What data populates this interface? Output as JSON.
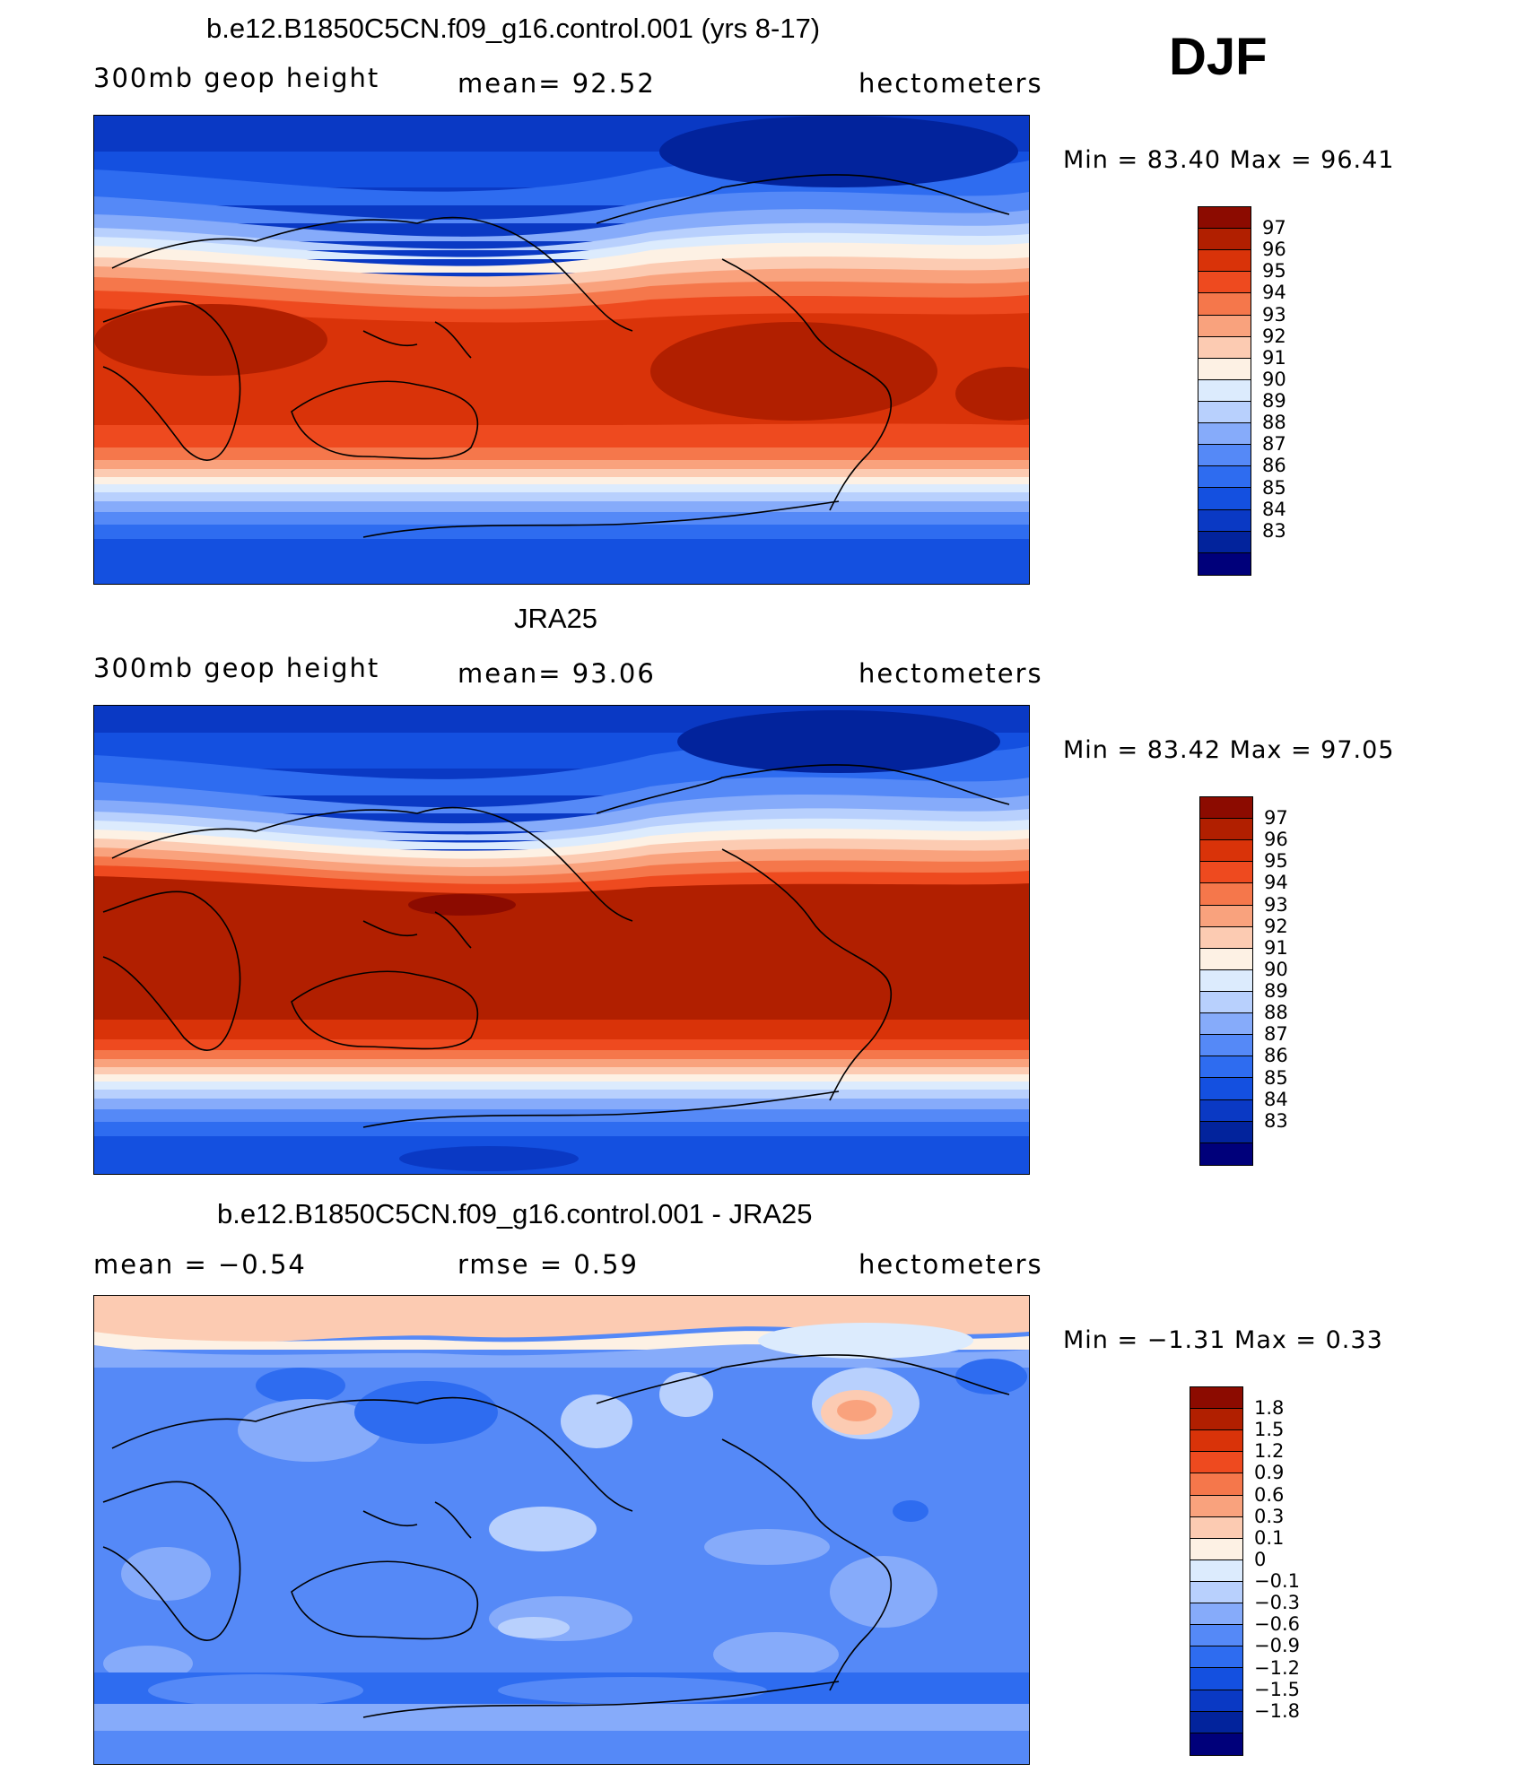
{
  "season": "DJF",
  "colors": {
    "scale_blue_to_red": [
      "#00007a",
      "#02239c",
      "#0a39c4",
      "#1450e0",
      "#2e6cf0",
      "#5589f7",
      "#86abfa",
      "#b8d0fd",
      "#dcebfd",
      "#fdf1e4",
      "#fccbb2",
      "#f9a27d",
      "#f5774b",
      "#ee4a1f",
      "#d93309",
      "#b11f00",
      "#8c0b00"
    ]
  },
  "panels": [
    {
      "title": "b.e12.B1850C5CN.f09_g16.control.001 (yrs 8-17)",
      "left_label": "300mb  geop  height",
      "center_label": "mean=   92.52",
      "right_label": "hectometers",
      "minmax": "Min  =    83.40  Max  =    96.41",
      "colorbar_labels": [
        "97",
        "96",
        "95",
        "94",
        "93",
        "92",
        "91",
        "90",
        "89",
        "88",
        "87",
        "86",
        "85",
        "84",
        "83"
      ],
      "map_icon": "contour-map-geopotential"
    },
    {
      "title": "JRA25",
      "left_label": "300mb  geop  height",
      "center_label": "mean=   93.06",
      "right_label": "hectometers",
      "minmax": "Min  =    83.42  Max  =    97.05",
      "colorbar_labels": [
        "97",
        "96",
        "95",
        "94",
        "93",
        "92",
        "91",
        "90",
        "89",
        "88",
        "87",
        "86",
        "85",
        "84",
        "83"
      ],
      "map_icon": "contour-map-geopotential"
    },
    {
      "title": "b.e12.B1850C5CN.f09_g16.control.001 - JRA25",
      "left_label": "mean  =    −0.54",
      "center_label": "rmse  =     0.59",
      "right_label": "hectometers",
      "minmax": "Min  =   −1.31  Max  =     0.33",
      "colorbar_labels": [
        "1.8",
        "1.5",
        "1.2",
        "0.9",
        "0.6",
        "0.3",
        "0.1",
        "0",
        "−0.1",
        "−0.3",
        "−0.6",
        "−0.9",
        "−1.2",
        "−1.5",
        "−1.8"
      ],
      "map_icon": "contour-map-difference"
    }
  ]
}
